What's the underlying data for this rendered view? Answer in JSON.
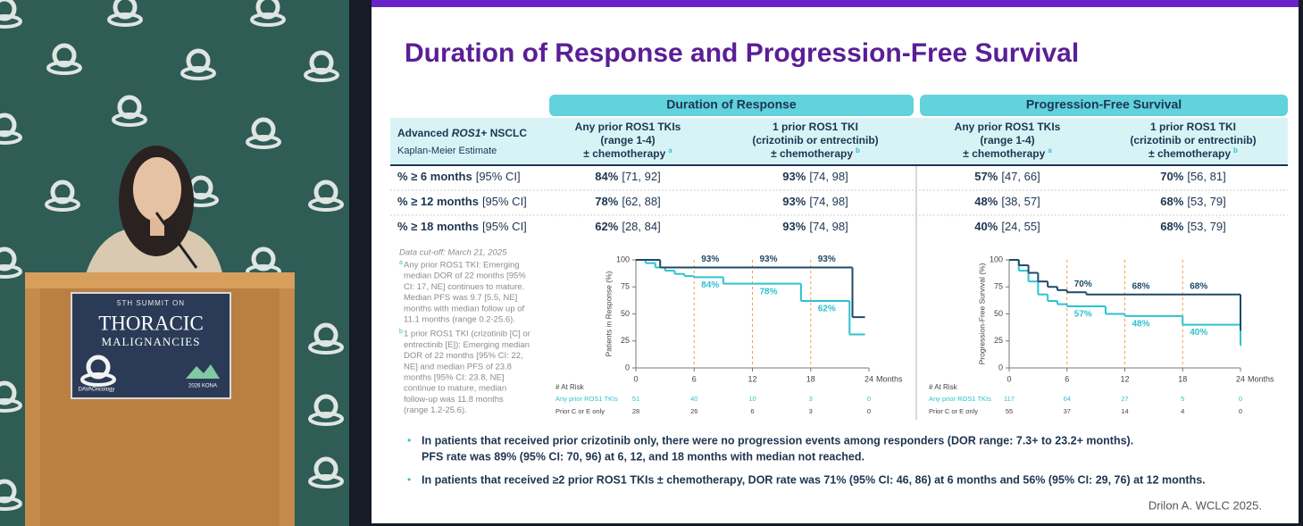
{
  "speaker_panel": {
    "event_lines": [
      "5TH SUMMIT ON",
      "THORACIC",
      "MALIGNANCIES"
    ],
    "organizer": "DAVAOncology",
    "venue": "2026 KONA"
  },
  "slide": {
    "title": "Duration of Response and Progression-Free Survival",
    "citation": "Drilon A. WCLC 2025."
  },
  "table": {
    "groups": [
      "Duration of Response",
      "Progression-Free Survival"
    ],
    "corner": {
      "title_parts": [
        "Advanced ",
        "ROS1",
        "+ NSCLC"
      ],
      "subtitle": "Kaplan-Meier Estimate"
    },
    "columns": [
      {
        "lines": [
          "Any prior ROS1 TKIs",
          "(range 1-4)",
          "± chemotherapy"
        ],
        "note": "a"
      },
      {
        "lines": [
          "1 prior ROS1 TKI",
          "(crizotinib or entrectinib)",
          "± chemotherapy"
        ],
        "note": "b"
      },
      {
        "lines": [
          "Any prior ROS1 TKIs",
          "(range 1-4)",
          "± chemotherapy"
        ],
        "note": "a"
      },
      {
        "lines": [
          "1 prior ROS1 TKI",
          "(crizotinib or entrectinib)",
          "± chemotherapy"
        ],
        "note": "b"
      }
    ],
    "rows": [
      {
        "label": "% ≥ 6 months",
        "ci_label": "[95% CI]",
        "cells": [
          {
            "pct": "84%",
            "ci": "[71, 92]"
          },
          {
            "pct": "93%",
            "ci": "[74, 98]"
          },
          {
            "pct": "57%",
            "ci": "[47, 66]"
          },
          {
            "pct": "70%",
            "ci": "[56, 81]"
          }
        ]
      },
      {
        "label": "% ≥ 12 months",
        "ci_label": "[95% CI]",
        "cells": [
          {
            "pct": "78%",
            "ci": "[62, 88]"
          },
          {
            "pct": "93%",
            "ci": "[74, 98]"
          },
          {
            "pct": "48%",
            "ci": "[38, 57]"
          },
          {
            "pct": "68%",
            "ci": "[53, 79]"
          }
        ]
      },
      {
        "label": "% ≥ 18 months",
        "ci_label": "[95% CI]",
        "cells": [
          {
            "pct": "62%",
            "ci": "[28, 84]"
          },
          {
            "pct": "93%",
            "ci": "[74, 98]"
          },
          {
            "pct": "40%",
            "ci": "[24, 55]"
          },
          {
            "pct": "68%",
            "ci": "[53, 79]"
          }
        ]
      }
    ]
  },
  "footnotes": {
    "cutoff": "Data cut-off: March 21, 2025",
    "notes": [
      {
        "marker": "a",
        "lines": [
          "Any prior ROS1 TKI: Emerging",
          "median DOR of 22 months [95%",
          "CI: 17, NE] continues to mature.",
          "Median PFS was 9.7 [5.5, NE]",
          "months with median follow up of",
          "11.1 months (range 0.2-25.6)."
        ]
      },
      {
        "marker": "b",
        "lines": [
          "1 prior ROS1 TKI (crizotinib [C] or",
          "entrectinib [E]): Emerging median",
          "DOR of 22 months [95% CI: 22,",
          "NE] and median PFS of 23.8",
          "months [95% CI: 23.8, NE]",
          "continue to mature, median",
          "follow-up was 11.8 months",
          "(range 1.2-25.6)."
        ]
      }
    ]
  },
  "chart_data": [
    {
      "type": "line",
      "step": true,
      "ylabel": "Patients in Response (%)",
      "xlabel": "Months",
      "xlim": [
        0,
        24
      ],
      "xticks": [
        0,
        6,
        12,
        18,
        24
      ],
      "ylim": [
        0,
        100
      ],
      "yticks": [
        0,
        25,
        50,
        75,
        100
      ],
      "at_risk_title": "# At Risk",
      "series": [
        {
          "name": "Any prior ROS1 TKIs",
          "color": "#2cc3cf",
          "x": [
            0,
            1,
            2,
            3,
            4,
            5,
            6,
            9,
            17,
            22,
            23.5
          ],
          "values": [
            100,
            97,
            93,
            90,
            87,
            85,
            84,
            78,
            62,
            31,
            31
          ],
          "annotations": {
            "x": [
              6,
              12,
              18
            ],
            "values": [
              84,
              78,
              62
            ],
            "value_labels": [
              "84%",
              "78%",
              "62%"
            ]
          },
          "at_risk": [
            51,
            40,
            10,
            3,
            0
          ]
        },
        {
          "name": "Prior C or E only",
          "color": "#1f4a66",
          "x": [
            0,
            2.5,
            22.3,
            23.5
          ],
          "values": [
            100,
            93,
            47,
            47
          ],
          "annotations": {
            "x": [
              6,
              12,
              18
            ],
            "values": [
              93,
              93,
              93
            ],
            "value_labels": [
              "93%",
              "93%",
              "93%"
            ]
          },
          "at_risk": [
            28,
            26,
            6,
            3,
            0
          ]
        }
      ]
    },
    {
      "type": "line",
      "step": true,
      "ylabel": "Progression-Free Survival (%)",
      "xlabel": "Months",
      "xlim": [
        0,
        24
      ],
      "xticks": [
        0,
        6,
        12,
        18,
        24
      ],
      "ylim": [
        0,
        100
      ],
      "yticks": [
        0,
        25,
        50,
        75,
        100
      ],
      "at_risk_title": "# At Risk",
      "series": [
        {
          "name": "Any prior ROS1 TKIs",
          "color": "#2cc3cf",
          "x": [
            0,
            1,
            2,
            3,
            4,
            5,
            6,
            10,
            12,
            18,
            23.8,
            24
          ],
          "values": [
            100,
            90,
            80,
            68,
            62,
            59,
            57,
            50,
            48,
            40,
            40,
            21
          ],
          "annotations": {
            "x": [
              6,
              12,
              18
            ],
            "values": [
              57,
              48,
              40
            ],
            "value_labels": [
              "57%",
              "48%",
              "40%"
            ]
          },
          "at_risk": [
            117,
            64,
            27,
            5,
            0
          ]
        },
        {
          "name": "Prior C or E only",
          "color": "#1f4a66",
          "x": [
            0,
            1,
            2,
            3,
            4,
            5,
            6,
            8,
            23.9,
            24
          ],
          "values": [
            100,
            95,
            88,
            80,
            75,
            72,
            70,
            68,
            68,
            35
          ],
          "annotations": {
            "x": [
              6,
              12,
              18
            ],
            "values": [
              70,
              68,
              68
            ],
            "value_labels": [
              "70%",
              "68%",
              "68%"
            ]
          },
          "at_risk": [
            55,
            37,
            14,
            4,
            0
          ]
        }
      ]
    }
  ],
  "bullets": [
    [
      "In patients that received prior crizotinib only, there were no progression events among responders (DOR range: 7.3+ to 23.2+ months).",
      "PFS rate was 89% (95% CI: 70, 96) at 6, 12, and 18 months with median not reached."
    ],
    [
      "In patients that received ≥2 prior ROS1 TKIs ± chemotherapy, DOR rate was 71% (95% CI: 46, 86) at 6 months and 56% (95% CI: 29, 76) at 12 months."
    ]
  ]
}
